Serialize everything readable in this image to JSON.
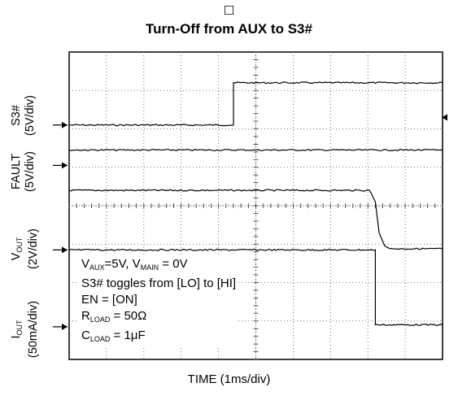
{
  "header_glyph": "☐",
  "chart_data": {
    "type": "line",
    "title": "Turn-Off from AUX to S3#",
    "xlabel": "TIME (1ms/div)",
    "x_divisions": 10,
    "y_divisions": 8,
    "grid": true,
    "channels": [
      {
        "name_main": "S3#",
        "name_sub": "",
        "scale": "(5V/div)",
        "baseline_div": 6.1,
        "trace": [
          [
            0,
            6.1
          ],
          [
            4.4,
            6.1
          ],
          [
            4.4,
            7.2
          ],
          [
            10,
            7.2
          ]
        ]
      },
      {
        "name_main": "FAULT",
        "name_sub": "",
        "scale": "(5V/div)",
        "baseline_div": 5.05,
        "trace": [
          [
            0,
            5.45
          ],
          [
            10,
            5.45
          ]
        ]
      },
      {
        "name_main": "V",
        "name_sub": "OUT",
        "scale": "(2V/div)",
        "baseline_div": 2.85,
        "trace": [
          [
            0,
            4.4
          ],
          [
            8.05,
            4.4
          ],
          [
            8.2,
            4.1
          ],
          [
            8.3,
            3.3
          ],
          [
            8.45,
            2.95
          ],
          [
            8.6,
            2.88
          ],
          [
            10,
            2.88
          ]
        ]
      },
      {
        "name_main": "I",
        "name_sub": "OUT",
        "scale": "(50mA/div)",
        "baseline_div": 0.85,
        "trace": [
          [
            0,
            2.85
          ],
          [
            8.2,
            2.85
          ],
          [
            8.2,
            0.9
          ],
          [
            10,
            0.9
          ]
        ]
      }
    ]
  },
  "annotations": {
    "line1": {
      "p1": "V",
      "s1": "AUX",
      "p2": "=5V, V",
      "s2": "MAIN",
      "p3": " = 0V"
    },
    "line2": "S3# toggles from [LO] to [HI]",
    "line3": "EN = [ON]",
    "line4": {
      "p1": "R",
      "s1": "LOAD",
      "p2": " = 50Ω"
    },
    "line5": {
      "p1": "C",
      "s1": "LOAD",
      "p2": " = 1μF"
    }
  }
}
